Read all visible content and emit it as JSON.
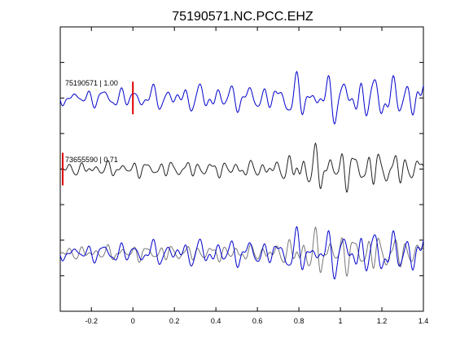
{
  "chart_data": {
    "type": "line",
    "title": "75190571.NC.PCC.EHZ",
    "xlabel": "",
    "ylabel": "",
    "xlim": [
      -0.35,
      1.4
    ],
    "xticks": [
      {
        "value": -0.2,
        "label": "-0.2"
      },
      {
        "value": 0,
        "label": "0"
      },
      {
        "value": 0.2,
        "label": "0.2"
      },
      {
        "value": 0.4,
        "label": "0.4"
      },
      {
        "value": 0.6,
        "label": "0.6"
      },
      {
        "value": 0.8,
        "label": "0.8"
      },
      {
        "value": 1.0,
        "label": "1"
      },
      {
        "value": 1.2,
        "label": "1.2"
      },
      {
        "value": 1.4,
        "label": "1.4"
      }
    ],
    "yticks_count": 7,
    "grid": false,
    "colors": {
      "master": "#0000cc",
      "other": "#222222",
      "overlay_other": "#777777",
      "pick": "#dd0000"
    },
    "traces": [
      {
        "label": "75190571 | 1.00",
        "color": "#0000cc",
        "pick_time": 0.0,
        "profile": [
          [
            -0.35,
            0.35
          ],
          [
            0.0,
            0.5
          ],
          [
            0.45,
            0.65
          ],
          [
            0.65,
            0.55
          ],
          [
            0.8,
            1.0
          ],
          [
            1.4,
            1.0
          ]
        ],
        "components": [
          {
            "f": 13.0,
            "a": 1.0,
            "p": 0.3
          },
          {
            "f": 19.0,
            "a": 0.6,
            "p": 1.7
          },
          {
            "f": 8.5,
            "a": 0.5,
            "p": 2.9
          },
          {
            "f": 26.0,
            "a": 0.35,
            "p": 4.1
          }
        ]
      },
      {
        "label": "73655590 | 0.71",
        "color": "#222222",
        "pick_time": -0.35,
        "profile": [
          [
            -0.35,
            0.25
          ],
          [
            0.0,
            0.35
          ],
          [
            0.6,
            0.35
          ],
          [
            0.72,
            0.4
          ],
          [
            0.82,
            1.0
          ],
          [
            1.3,
            0.7
          ],
          [
            1.4,
            0.55
          ]
        ],
        "components": [
          {
            "f": 16.0,
            "a": 1.0,
            "p": 1.1
          },
          {
            "f": 23.0,
            "a": 0.55,
            "p": 0.4
          },
          {
            "f": 10.0,
            "a": 0.45,
            "p": 3.3
          },
          {
            "f": 31.0,
            "a": 0.3,
            "p": 5.2
          }
        ]
      }
    ]
  }
}
